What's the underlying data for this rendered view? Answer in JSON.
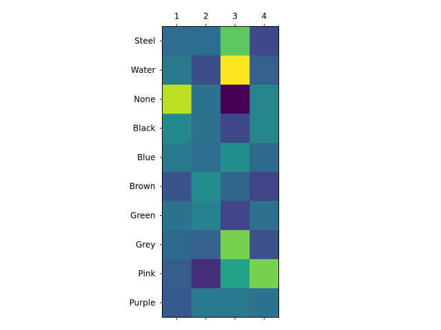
{
  "chart_data": {
    "type": "heatmap",
    "title": "",
    "xlabel": "",
    "ylabel": "",
    "x": [
      "1",
      "2",
      "3",
      "4"
    ],
    "y": [
      "Steel",
      "Water",
      "None",
      "Black",
      "Blue",
      "Brown",
      "Green",
      "Grey",
      "Pink",
      "Purple"
    ],
    "x_axis_position": "top",
    "colormap": "viridis",
    "color_range": [
      0,
      1
    ],
    "grid": false,
    "legend": "none",
    "values": [
      [
        0.35,
        0.36,
        0.75,
        0.22
      ],
      [
        0.4,
        0.24,
        1.0,
        0.3
      ],
      [
        0.9,
        0.38,
        0.0,
        0.45
      ],
      [
        0.47,
        0.37,
        0.22,
        0.46
      ],
      [
        0.4,
        0.36,
        0.48,
        0.34
      ],
      [
        0.26,
        0.48,
        0.33,
        0.2
      ],
      [
        0.38,
        0.44,
        0.2,
        0.37
      ],
      [
        0.34,
        0.31,
        0.8,
        0.25
      ],
      [
        0.29,
        0.13,
        0.58,
        0.8
      ],
      [
        0.28,
        0.4,
        0.4,
        0.38
      ]
    ]
  }
}
